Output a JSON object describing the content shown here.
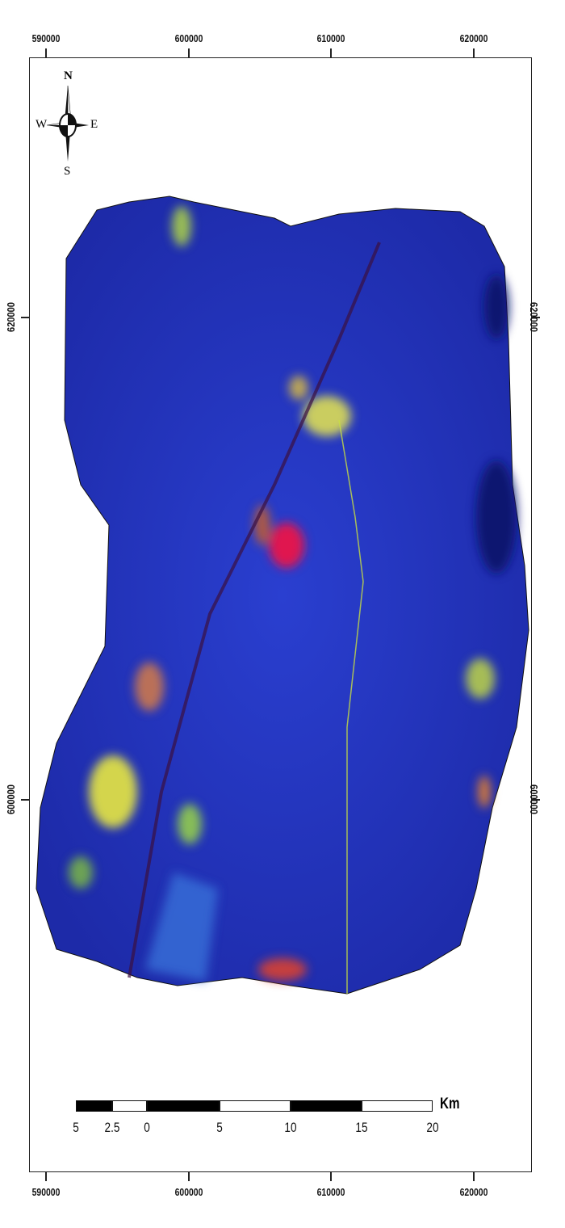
{
  "map": {
    "x_ticks": [
      "590000",
      "600000",
      "610000",
      "620000"
    ],
    "y_ticks": [
      "620000",
      "600000"
    ],
    "north_arrow": {
      "n": "N",
      "s": "S",
      "e": "E",
      "w": "W"
    },
    "scale_bar": {
      "labels": [
        "5",
        "2.5",
        "0",
        "5",
        "10",
        "15",
        "20"
      ],
      "unit": "Km"
    },
    "colors": {
      "background_land": "#2233c8",
      "vegetation": "#5fd05a",
      "urban": "#f0e040",
      "bare": "#d02040"
    }
  }
}
